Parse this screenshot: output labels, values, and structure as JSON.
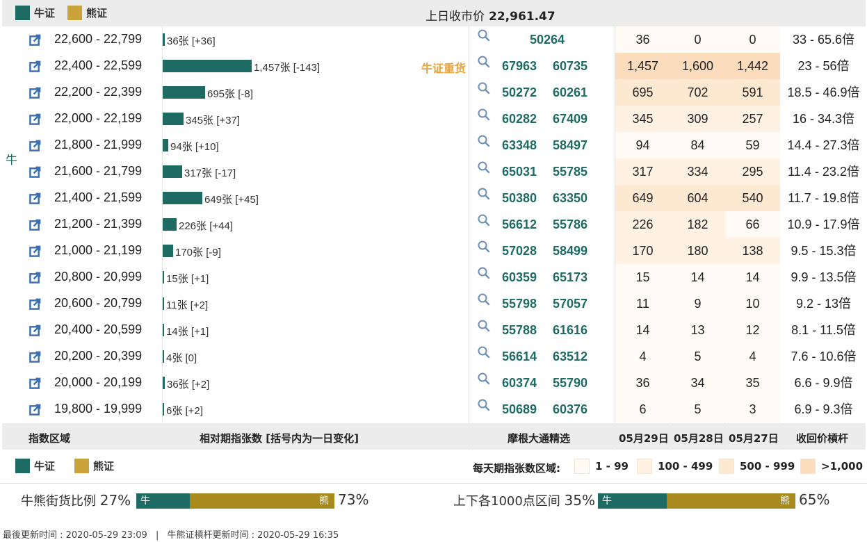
{
  "legend": {
    "bull": "牛证",
    "bear": "熊证"
  },
  "close_price": {
    "label": "上日收市价",
    "value": "22,961.47"
  },
  "side_label": "牛",
  "heavy_tag": "牛证重货",
  "rows": [
    {
      "range": "22,600 - 22,799",
      "count": 36,
      "bar_label": "36张 [+36]",
      "codes": [
        "50264"
      ],
      "d1": "36",
      "d2": "0",
      "d3": "0",
      "lev": "33 - 65.6倍"
    },
    {
      "range": "22,400 - 22,599",
      "count": 1457,
      "bar_label": "1,457张 [-143]",
      "codes": [
        "67963",
        "60735"
      ],
      "d1": "1,457",
      "d2": "1,600",
      "d3": "1,442",
      "lev": "23 - 56倍",
      "tag": true
    },
    {
      "range": "22,200 - 22,399",
      "count": 695,
      "bar_label": "695张 [-8]",
      "codes": [
        "50272",
        "60261"
      ],
      "d1": "695",
      "d2": "702",
      "d3": "591",
      "lev": "18.5 - 46.9倍"
    },
    {
      "range": "22,000 - 22,199",
      "count": 345,
      "bar_label": "345张 [+37]",
      "codes": [
        "60282",
        "67409"
      ],
      "d1": "345",
      "d2": "309",
      "d3": "257",
      "lev": "16 - 34.3倍"
    },
    {
      "range": "21,800 - 21,999",
      "count": 94,
      "bar_label": "94张 [+10]",
      "codes": [
        "63348",
        "58497"
      ],
      "d1": "94",
      "d2": "84",
      "d3": "59",
      "lev": "14.4 - 27.3倍"
    },
    {
      "range": "21,600 - 21,799",
      "count": 317,
      "bar_label": "317张 [-17]",
      "codes": [
        "65031",
        "55785"
      ],
      "d1": "317",
      "d2": "334",
      "d3": "295",
      "lev": "11.4 - 23.2倍"
    },
    {
      "range": "21,400 - 21,599",
      "count": 649,
      "bar_label": "649张 [+45]",
      "codes": [
        "50380",
        "63350"
      ],
      "d1": "649",
      "d2": "604",
      "d3": "540",
      "lev": "11.7 - 19.8倍"
    },
    {
      "range": "21,200 - 21,399",
      "count": 226,
      "bar_label": "226张 [+44]",
      "codes": [
        "56612",
        "55786"
      ],
      "d1": "226",
      "d2": "182",
      "d3": "66",
      "lev": "10.9 - 17.9倍"
    },
    {
      "range": "21,000 - 21,199",
      "count": 170,
      "bar_label": "170张 [-9]",
      "codes": [
        "57028",
        "58499"
      ],
      "d1": "170",
      "d2": "180",
      "d3": "138",
      "lev": "9.5 - 15.3倍"
    },
    {
      "range": "20,800 - 20,999",
      "count": 15,
      "bar_label": "15张 [+1]",
      "codes": [
        "60359",
        "65173"
      ],
      "d1": "15",
      "d2": "14",
      "d3": "14",
      "lev": "9.9 - 13.5倍"
    },
    {
      "range": "20,600 - 20,799",
      "count": 11,
      "bar_label": "11张 [+2]",
      "codes": [
        "55798",
        "57057"
      ],
      "d1": "11",
      "d2": "9",
      "d3": "10",
      "lev": "9.2 - 13倍"
    },
    {
      "range": "20,400 - 20,599",
      "count": 14,
      "bar_label": "14张 [+1]",
      "codes": [
        "55788",
        "61616"
      ],
      "d1": "14",
      "d2": "13",
      "d3": "12",
      "lev": "8.1 - 11.5倍"
    },
    {
      "range": "20,200 - 20,399",
      "count": 4,
      "bar_label": "4张 [0]",
      "codes": [
        "56614",
        "63512"
      ],
      "d1": "4",
      "d2": "5",
      "d3": "4",
      "lev": "7.6 - 10.6倍"
    },
    {
      "range": "20,000 - 20,199",
      "count": 36,
      "bar_label": "36张 [+2]",
      "codes": [
        "60374",
        "55790"
      ],
      "d1": "36",
      "d2": "34",
      "d3": "35",
      "lev": "6.6 - 9.9倍"
    },
    {
      "range": "19,800 - 19,999",
      "count": 6,
      "bar_label": "6张 [+2]",
      "codes": [
        "50689",
        "60376"
      ],
      "d1": "6",
      "d2": "5",
      "d3": "3",
      "lev": "6.9 - 9.3倍"
    }
  ],
  "headers": {
    "range": "指数区域",
    "count": "相对期指张数 [括号内为一日变化]",
    "picks": "摩根大通精选",
    "d1": "05月29日",
    "d2": "05月28日",
    "d3": "05月27日",
    "lev": "收回价槓杆"
  },
  "daily_legend": {
    "title": "每天期指张数区域:",
    "keys": [
      {
        "label": "1 - 99",
        "color": "#fffaf3"
      },
      {
        "label": "100 - 499",
        "color": "#fff2e3"
      },
      {
        "label": "500 - 999",
        "color": "#fde8d2"
      },
      {
        "label": ">1,000",
        "color": "#fbdcbc"
      }
    ]
  },
  "ratio_street": {
    "label": "牛熊街货比例",
    "bull_pct": "27%",
    "bear_pct": "73%",
    "bull_char": "牛",
    "bear_char": "熊",
    "bull_value": 27
  },
  "ratio_range": {
    "label": "上下各1000点区间",
    "bull_pct": "35%",
    "bear_pct": "65%",
    "bull_char": "牛",
    "bear_char": "熊",
    "bull_value": 35
  },
  "footer": {
    "updated": "最後更新时间 : 2020-05-29 23:09",
    "sep": "|",
    "callback_updated": "牛熊证槓杆更新时间 : 2020-05-29 16:35"
  },
  "colors": {
    "bull": "#1e6b63",
    "bear": "#c9a33a",
    "bear_bar": "#a88a1c",
    "tag": "#e8a23a"
  }
}
